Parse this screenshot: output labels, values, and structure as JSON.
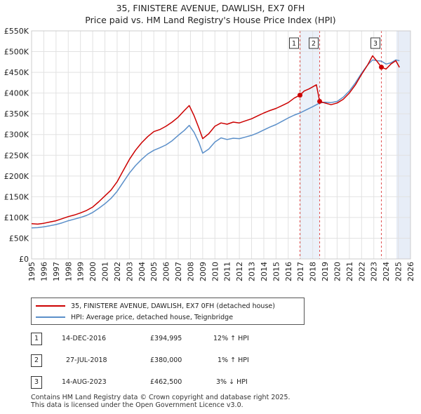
{
  "chart_data": {
    "type": "line",
    "title": "35, FINISTERE AVENUE, DAWLISH, EX7 0FH",
    "subtitle": "Price paid vs. HM Land Registry's House Price Index (HPI)",
    "xlabel": "",
    "ylabel": "",
    "xlim": [
      1995,
      2026
    ],
    "ylim": [
      0,
      550000
    ],
    "y_ticks": [
      {
        "value": 0,
        "label": "£0"
      },
      {
        "value": 50000,
        "label": "£50K"
      },
      {
        "value": 100000,
        "label": "£100K"
      },
      {
        "value": 150000,
        "label": "£150K"
      },
      {
        "value": 200000,
        "label": "£200K"
      },
      {
        "value": 250000,
        "label": "£250K"
      },
      {
        "value": 300000,
        "label": "£300K"
      },
      {
        "value": 350000,
        "label": "£350K"
      },
      {
        "value": 400000,
        "label": "£400K"
      },
      {
        "value": 450000,
        "label": "£450K"
      },
      {
        "value": 500000,
        "label": "£500K"
      },
      {
        "value": 550000,
        "label": "£550K"
      }
    ],
    "x_ticks": [
      "1995",
      "1996",
      "1997",
      "1998",
      "1999",
      "2000",
      "2001",
      "2002",
      "2003",
      "2004",
      "2005",
      "2006",
      "2007",
      "2008",
      "2009",
      "2010",
      "2011",
      "2012",
      "2013",
      "2014",
      "2015",
      "2016",
      "2017",
      "2018",
      "2019",
      "2020",
      "2021",
      "2022",
      "2023",
      "2024",
      "2025",
      "2026"
    ],
    "grid": true,
    "series": [
      {
        "name": "35, FINISTERE AVENUE, DAWLISH, EX7 0FH (detached house)",
        "color": "#cc0000",
        "points": [
          [
            1995.0,
            85000
          ],
          [
            1995.5,
            84000
          ],
          [
            1996.0,
            86000
          ],
          [
            1996.5,
            89000
          ],
          [
            1997.0,
            92000
          ],
          [
            1997.5,
            97000
          ],
          [
            1998.0,
            102000
          ],
          [
            1998.5,
            106000
          ],
          [
            1999.0,
            111000
          ],
          [
            1999.5,
            117000
          ],
          [
            2000.0,
            125000
          ],
          [
            2000.5,
            138000
          ],
          [
            2001.0,
            152000
          ],
          [
            2001.5,
            166000
          ],
          [
            2002.0,
            186000
          ],
          [
            2002.5,
            213000
          ],
          [
            2003.0,
            240000
          ],
          [
            2003.5,
            262000
          ],
          [
            2004.0,
            280000
          ],
          [
            2004.5,
            295000
          ],
          [
            2005.0,
            307000
          ],
          [
            2005.5,
            312000
          ],
          [
            2006.0,
            320000
          ],
          [
            2006.5,
            330000
          ],
          [
            2007.0,
            342000
          ],
          [
            2007.5,
            358000
          ],
          [
            2007.9,
            370000
          ],
          [
            2008.3,
            345000
          ],
          [
            2008.7,
            315000
          ],
          [
            2009.0,
            290000
          ],
          [
            2009.5,
            302000
          ],
          [
            2010.0,
            320000
          ],
          [
            2010.5,
            328000
          ],
          [
            2011.0,
            325000
          ],
          [
            2011.5,
            330000
          ],
          [
            2012.0,
            328000
          ],
          [
            2012.5,
            333000
          ],
          [
            2013.0,
            338000
          ],
          [
            2013.5,
            345000
          ],
          [
            2014.0,
            352000
          ],
          [
            2014.5,
            358000
          ],
          [
            2015.0,
            363000
          ],
          [
            2015.5,
            370000
          ],
          [
            2016.0,
            377000
          ],
          [
            2016.5,
            388000
          ],
          [
            2016.96,
            394995
          ],
          [
            2017.3,
            405000
          ],
          [
            2017.7,
            410000
          ],
          [
            2018.0,
            415000
          ],
          [
            2018.3,
            420000
          ],
          [
            2018.57,
            380000
          ],
          [
            2019.0,
            376000
          ],
          [
            2019.5,
            372000
          ],
          [
            2020.0,
            376000
          ],
          [
            2020.5,
            385000
          ],
          [
            2021.0,
            400000
          ],
          [
            2021.5,
            420000
          ],
          [
            2022.0,
            445000
          ],
          [
            2022.5,
            468000
          ],
          [
            2022.9,
            490000
          ],
          [
            2023.3,
            475000
          ],
          [
            2023.62,
            462500
          ],
          [
            2024.0,
            458000
          ],
          [
            2024.4,
            470000
          ],
          [
            2024.8,
            478000
          ],
          [
            2025.1,
            462000
          ]
        ]
      },
      {
        "name": "HPI: Average price, detached house, Teignbridge",
        "color": "#5b8fc9",
        "points": [
          [
            1995.0,
            75000
          ],
          [
            1995.5,
            75500
          ],
          [
            1996.0,
            77500
          ],
          [
            1996.5,
            80000
          ],
          [
            1997.0,
            83000
          ],
          [
            1997.5,
            87000
          ],
          [
            1998.0,
            92000
          ],
          [
            1998.5,
            96000
          ],
          [
            1999.0,
            100000
          ],
          [
            1999.5,
            105000
          ],
          [
            2000.0,
            112000
          ],
          [
            2000.5,
            122000
          ],
          [
            2001.0,
            133000
          ],
          [
            2001.5,
            146000
          ],
          [
            2002.0,
            163000
          ],
          [
            2002.5,
            185000
          ],
          [
            2003.0,
            207000
          ],
          [
            2003.5,
            225000
          ],
          [
            2004.0,
            240000
          ],
          [
            2004.5,
            253000
          ],
          [
            2005.0,
            262000
          ],
          [
            2005.5,
            268000
          ],
          [
            2006.0,
            275000
          ],
          [
            2006.5,
            285000
          ],
          [
            2007.0,
            298000
          ],
          [
            2007.5,
            310000
          ],
          [
            2007.9,
            322000
          ],
          [
            2008.3,
            305000
          ],
          [
            2008.7,
            280000
          ],
          [
            2009.0,
            255000
          ],
          [
            2009.5,
            265000
          ],
          [
            2010.0,
            282000
          ],
          [
            2010.5,
            292000
          ],
          [
            2011.0,
            288000
          ],
          [
            2011.5,
            291000
          ],
          [
            2012.0,
            290000
          ],
          [
            2012.5,
            294000
          ],
          [
            2013.0,
            298000
          ],
          [
            2013.5,
            304000
          ],
          [
            2014.0,
            311000
          ],
          [
            2014.5,
            318000
          ],
          [
            2015.0,
            324000
          ],
          [
            2015.5,
            332000
          ],
          [
            2016.0,
            340000
          ],
          [
            2016.5,
            347000
          ],
          [
            2016.96,
            352000
          ],
          [
            2017.5,
            360000
          ],
          [
            2018.0,
            367000
          ],
          [
            2018.57,
            376000
          ],
          [
            2019.0,
            378000
          ],
          [
            2019.5,
            377000
          ],
          [
            2020.0,
            380000
          ],
          [
            2020.5,
            390000
          ],
          [
            2021.0,
            405000
          ],
          [
            2021.5,
            425000
          ],
          [
            2022.0,
            448000
          ],
          [
            2022.5,
            468000
          ],
          [
            2022.9,
            480000
          ],
          [
            2023.3,
            478000
          ],
          [
            2023.62,
            477000
          ],
          [
            2024.0,
            470000
          ],
          [
            2024.4,
            473000
          ],
          [
            2024.8,
            480000
          ],
          [
            2025.1,
            478000
          ]
        ]
      }
    ],
    "highlight_period": [
      2024.85,
      2026
    ],
    "sales": [
      {
        "marker": "1",
        "x": 2016.96,
        "y": 394995,
        "date": "14-DEC-2016",
        "price": "£394,995",
        "hpi": "12% ↑ HPI"
      },
      {
        "marker": "2",
        "x": 2018.57,
        "y": 380000,
        "date": "27-JUL-2018",
        "price": "£380,000",
        "hpi": "1% ↑ HPI"
      },
      {
        "marker": "3",
        "x": 2023.62,
        "y": 462500,
        "date": "14-AUG-2023",
        "price": "£462,500",
        "hpi": "3% ↓ HPI"
      }
    ]
  },
  "legend": {
    "property_label": "35, FINISTERE AVENUE, DAWLISH, EX7 0FH (detached house)",
    "hpi_label": "HPI: Average price, detached house, Teignbridge"
  },
  "footer": {
    "line1": "Contains HM Land Registry data © Crown copyright and database right 2025.",
    "line2": "This data is licensed under the Open Government Licence v3.0."
  }
}
